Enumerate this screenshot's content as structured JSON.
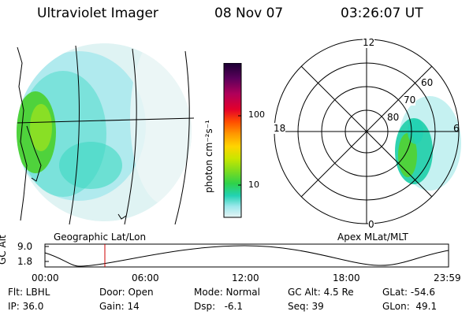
{
  "header": {
    "instrument": "Ultraviolet Imager",
    "date": "08 Nov 07",
    "time": "03:26:07 UT"
  },
  "colorbar": {
    "unit_label": "photon cm⁻²s⁻¹",
    "ticks": [
      "100",
      "10"
    ],
    "colors": [
      "#1a0033",
      "#5b005b",
      "#b0005a",
      "#e3002b",
      "#ff4d00",
      "#ff9900",
      "#ffd400",
      "#c8e600",
      "#7ddc1f",
      "#2fd24a",
      "#22d2b4",
      "#9ee8ec",
      "#d9f1f1"
    ]
  },
  "geo_panel": {
    "caption": "Geographic Lat/Lon"
  },
  "polar_panel": {
    "caption": "Apex MLat/MLT",
    "mlt_labels": {
      "top": "12",
      "left": "18",
      "right": "6",
      "bottom": "0"
    },
    "lat_labels": [
      "60",
      "70",
      "80"
    ]
  },
  "altitude_plot": {
    "ylabel": "GC Alt",
    "yticks": [
      "9.0",
      "1.8"
    ],
    "xticks": [
      "00:00",
      "06:00",
      "12:00",
      "18:00",
      "23:59"
    ],
    "marker_color": "#cc0000"
  },
  "status": {
    "filter": "Flt: LBHL",
    "ip": "IP: 36.0",
    "door": "Door: Open",
    "gain": "Gain: 14",
    "mode": "Mode: Normal",
    "dsp": "Dsp:   -6.1",
    "gc_alt": "GC Alt: 4.5 Re",
    "seq": "Seq: 39",
    "glat": "GLat: -54.6",
    "glon": "GLon:  49.1"
  }
}
